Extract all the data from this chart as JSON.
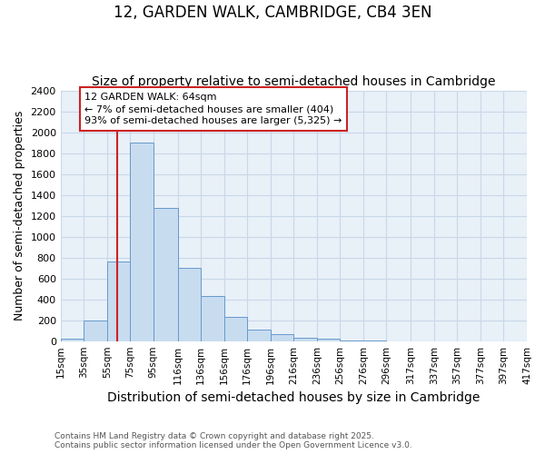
{
  "title": "12, GARDEN WALK, CAMBRIDGE, CB4 3EN",
  "subtitle": "Size of property relative to semi-detached houses in Cambridge",
  "xlabel": "Distribution of semi-detached houses by size in Cambridge",
  "ylabel": "Number of semi-detached properties",
  "bins": [
    "15sqm",
    "35sqm",
    "55sqm",
    "75sqm",
    "95sqm",
    "116sqm",
    "136sqm",
    "156sqm",
    "176sqm",
    "196sqm",
    "216sqm",
    "236sqm",
    "256sqm",
    "276sqm",
    "296sqm",
    "317sqm",
    "337sqm",
    "357sqm",
    "377sqm",
    "397sqm",
    "417sqm"
  ],
  "bin_edges": [
    15,
    35,
    55,
    75,
    95,
    116,
    136,
    156,
    176,
    196,
    216,
    236,
    256,
    276,
    296,
    317,
    337,
    357,
    377,
    397,
    417
  ],
  "values": [
    25,
    200,
    760,
    1900,
    1275,
    700,
    430,
    230,
    110,
    65,
    35,
    20,
    5,
    2,
    1,
    0,
    0,
    0,
    0,
    0
  ],
  "bar_color": "#c8dcf0",
  "bar_edge_color": "#6699cc",
  "grid_color": "#c8d8e8",
  "background_color": "#e8f0f8",
  "vline_x": 64,
  "vline_color": "#cc2222",
  "annotation_title": "12 GARDEN WALK: 64sqm",
  "annotation_line1": "← 7% of semi-detached houses are smaller (404)",
  "annotation_line2": "93% of semi-detached houses are larger (5,325) →",
  "annotation_box_color": "#cc2222",
  "ylim": [
    0,
    2400
  ],
  "yticks": [
    0,
    200,
    400,
    600,
    800,
    1000,
    1200,
    1400,
    1600,
    1800,
    2000,
    2200,
    2400
  ],
  "footer_line1": "Contains HM Land Registry data © Crown copyright and database right 2025.",
  "footer_line2": "Contains public sector information licensed under the Open Government Licence v3.0.",
  "title_fontsize": 12,
  "subtitle_fontsize": 10,
  "ylabel_fontsize": 9,
  "xlabel_fontsize": 10
}
